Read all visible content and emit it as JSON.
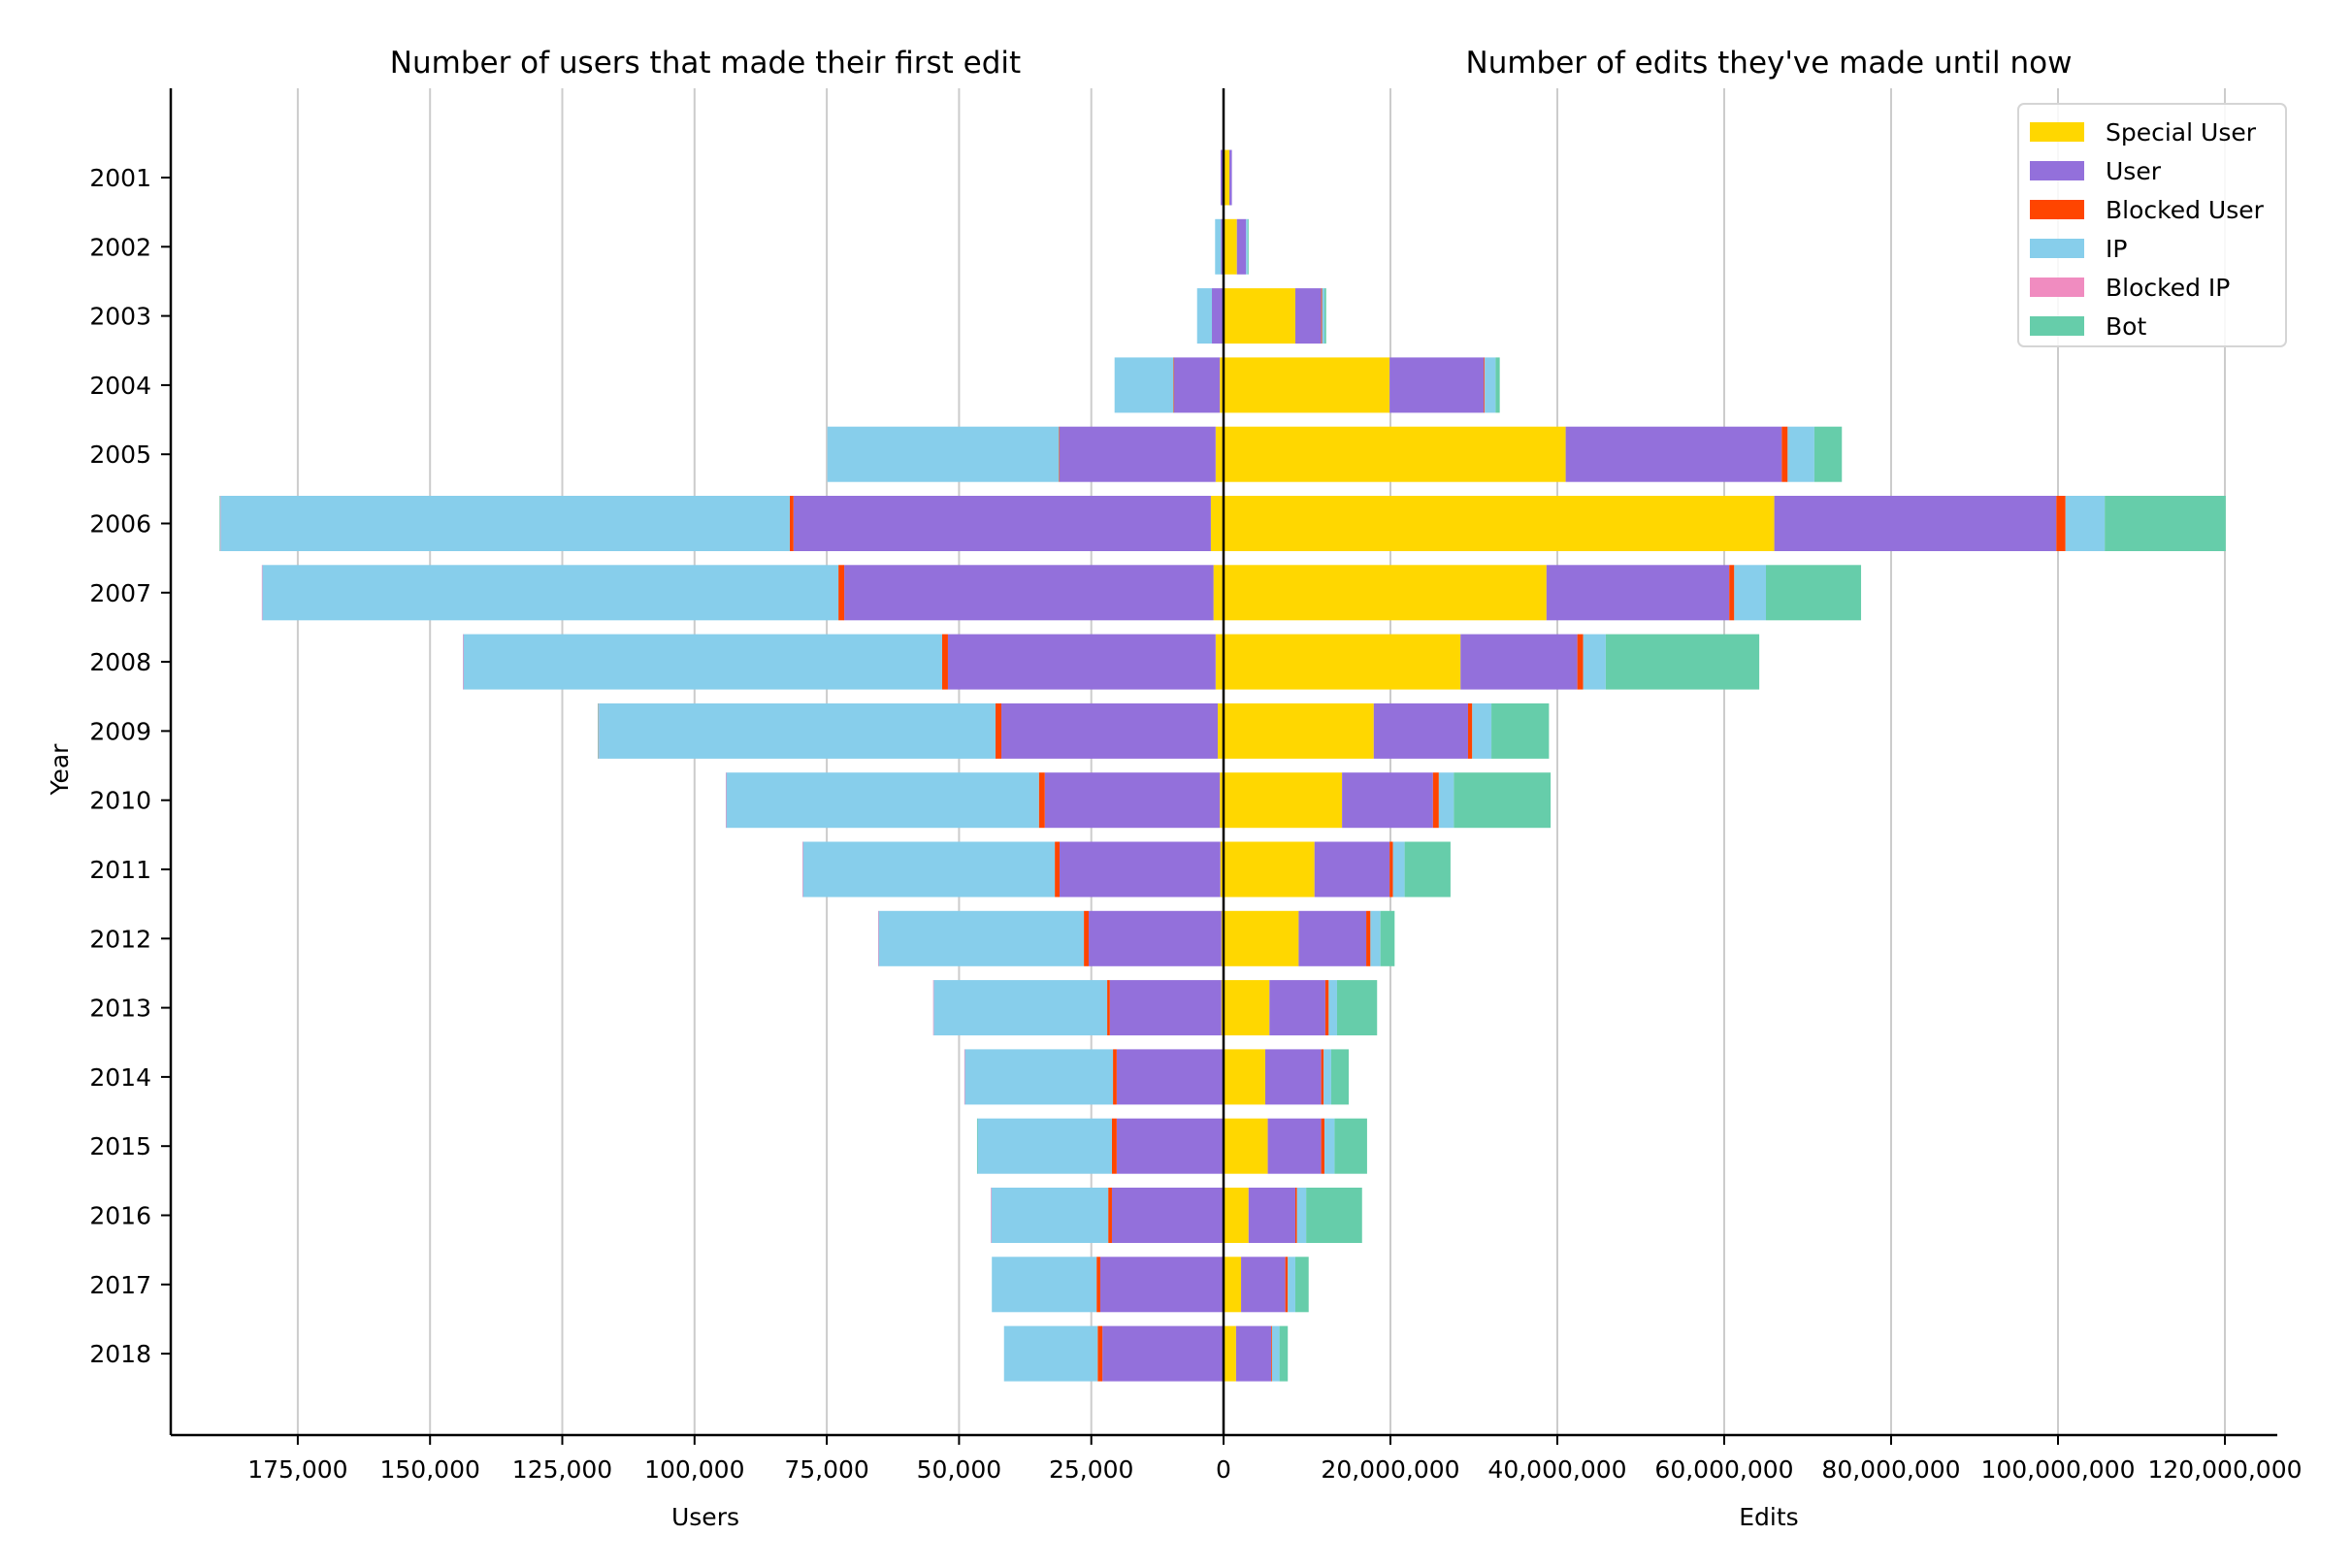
{
  "chart_data": [
    {
      "type": "bar",
      "orientation": "horizontal",
      "stacked": true,
      "direction": "leftward",
      "title": "Number of users that made their first edit",
      "xlabel": "Users",
      "ylabel": "Year",
      "xlim": [
        0,
        195000
      ],
      "xticks": [
        0,
        25000,
        50000,
        75000,
        100000,
        125000,
        150000,
        175000
      ],
      "xtick_labels": [
        "0",
        "25,000",
        "50,000",
        "75,000",
        "100,000",
        "125,000",
        "150,000",
        "175,000"
      ],
      "grid": true,
      "categories": [
        "2001",
        "2002",
        "2003",
        "2004",
        "2005",
        "2006",
        "2007",
        "2008",
        "2009",
        "2010",
        "2011",
        "2012",
        "2013",
        "2014",
        "2015",
        "2016",
        "2017",
        "2018"
      ],
      "series": [
        {
          "name": "Special User",
          "values": [
            50,
            0,
            0,
            700,
            1500,
            2400,
            1900,
            1500,
            1100,
            700,
            600,
            400,
            400,
            200,
            200,
            200,
            100,
            100
          ]
        },
        {
          "name": "User",
          "values": [
            500,
            500,
            2200,
            8700,
            29500,
            78900,
            69800,
            50600,
            40900,
            33100,
            30400,
            25100,
            21100,
            20000,
            20000,
            20900,
            23200,
            22800
          ]
        },
        {
          "name": "Blocked User",
          "values": [
            0,
            0,
            0,
            50,
            100,
            700,
            1100,
            1100,
            1100,
            1100,
            900,
            900,
            500,
            700,
            900,
            700,
            700,
            900
          ]
        },
        {
          "name": "IP",
          "values": [
            0,
            1100,
            2800,
            11150,
            43800,
            107600,
            108900,
            90500,
            75000,
            59100,
            47600,
            38800,
            32800,
            28000,
            25400,
            22100,
            19800,
            17700
          ]
        },
        {
          "name": "Blocked IP",
          "values": [
            0,
            0,
            0,
            0,
            0,
            100,
            100,
            100,
            100,
            100,
            100,
            100,
            100,
            100,
            0,
            100,
            0,
            0
          ]
        },
        {
          "name": "Bot",
          "values": [
            0,
            0,
            0,
            0,
            0,
            100,
            0,
            0,
            100,
            0,
            0,
            0,
            0,
            0,
            100,
            0,
            0,
            0
          ]
        }
      ]
    },
    {
      "type": "bar",
      "orientation": "horizontal",
      "stacked": true,
      "direction": "rightward",
      "title": "Number of edits they've made until now",
      "xlabel": "Edits",
      "xlim": [
        0,
        126000000
      ],
      "xticks": [
        0,
        20000000,
        40000000,
        60000000,
        80000000,
        100000000,
        120000000
      ],
      "xtick_labels": [
        "0",
        "20,000,000",
        "40,000,000",
        "60,000,000",
        "80,000,000",
        "100,000,000",
        "120,000,000"
      ],
      "grid": true,
      "categories": [
        "2001",
        "2002",
        "2003",
        "2004",
        "2005",
        "2006",
        "2007",
        "2008",
        "2009",
        "2010",
        "2011",
        "2012",
        "2013",
        "2014",
        "2015",
        "2016",
        "2017",
        "2018"
      ],
      "series": [
        {
          "name": "Special User",
          "values": [
            700000,
            1600000,
            8600000,
            19900000,
            41000000,
            66000000,
            38700000,
            28400000,
            18000000,
            14200000,
            10900000,
            9000000,
            5500000,
            5000000,
            5300000,
            3000000,
            2100000,
            1500000
          ]
        },
        {
          "name": "User",
          "values": [
            300000,
            1100000,
            3100000,
            11300000,
            25900000,
            33800000,
            21900000,
            14000000,
            11300000,
            10900000,
            9000000,
            8100000,
            6700000,
            6700000,
            6400000,
            5600000,
            5300000,
            4200000
          ]
        },
        {
          "name": "Blocked User",
          "values": [
            0,
            0,
            100000,
            100000,
            700000,
            1100000,
            600000,
            700000,
            500000,
            700000,
            400000,
            500000,
            400000,
            300000,
            400000,
            200000,
            300000,
            100000
          ]
        },
        {
          "name": "IP",
          "values": [
            0,
            200000,
            300000,
            1300000,
            3200000,
            4700000,
            3800000,
            2700000,
            2300000,
            1800000,
            1400000,
            1200000,
            1000000,
            900000,
            1200000,
            1100000,
            900000,
            900000
          ]
        },
        {
          "name": "Blocked IP",
          "values": [
            0,
            0,
            0,
            0,
            0,
            0,
            0,
            0,
            0,
            0,
            0,
            0,
            0,
            0,
            0,
            0,
            0,
            0
          ]
        },
        {
          "name": "Bot",
          "values": [
            0,
            100000,
            200000,
            500000,
            3300000,
            14500000,
            11400000,
            18400000,
            6900000,
            11600000,
            5500000,
            1700000,
            4800000,
            2100000,
            3900000,
            6700000,
            1600000,
            1000000
          ]
        }
      ]
    }
  ],
  "legend": {
    "placement": "top-right",
    "items": [
      {
        "label": "Special User",
        "color": "#FFD700"
      },
      {
        "label": "User",
        "color": "#9370DB"
      },
      {
        "label": "Blocked User",
        "color": "#FF4500"
      },
      {
        "label": "IP",
        "color": "#87CEEB"
      },
      {
        "label": "Blocked IP",
        "color": "#F08CC0"
      },
      {
        "label": "Bot",
        "color": "#66CDAA"
      }
    ]
  },
  "colors": {
    "Special User": "#FFD700",
    "User": "#9370DB",
    "Blocked User": "#FF4500",
    "IP": "#87CEEB",
    "Blocked IP": "#F08CC0",
    "Bot": "#66CDAA"
  }
}
